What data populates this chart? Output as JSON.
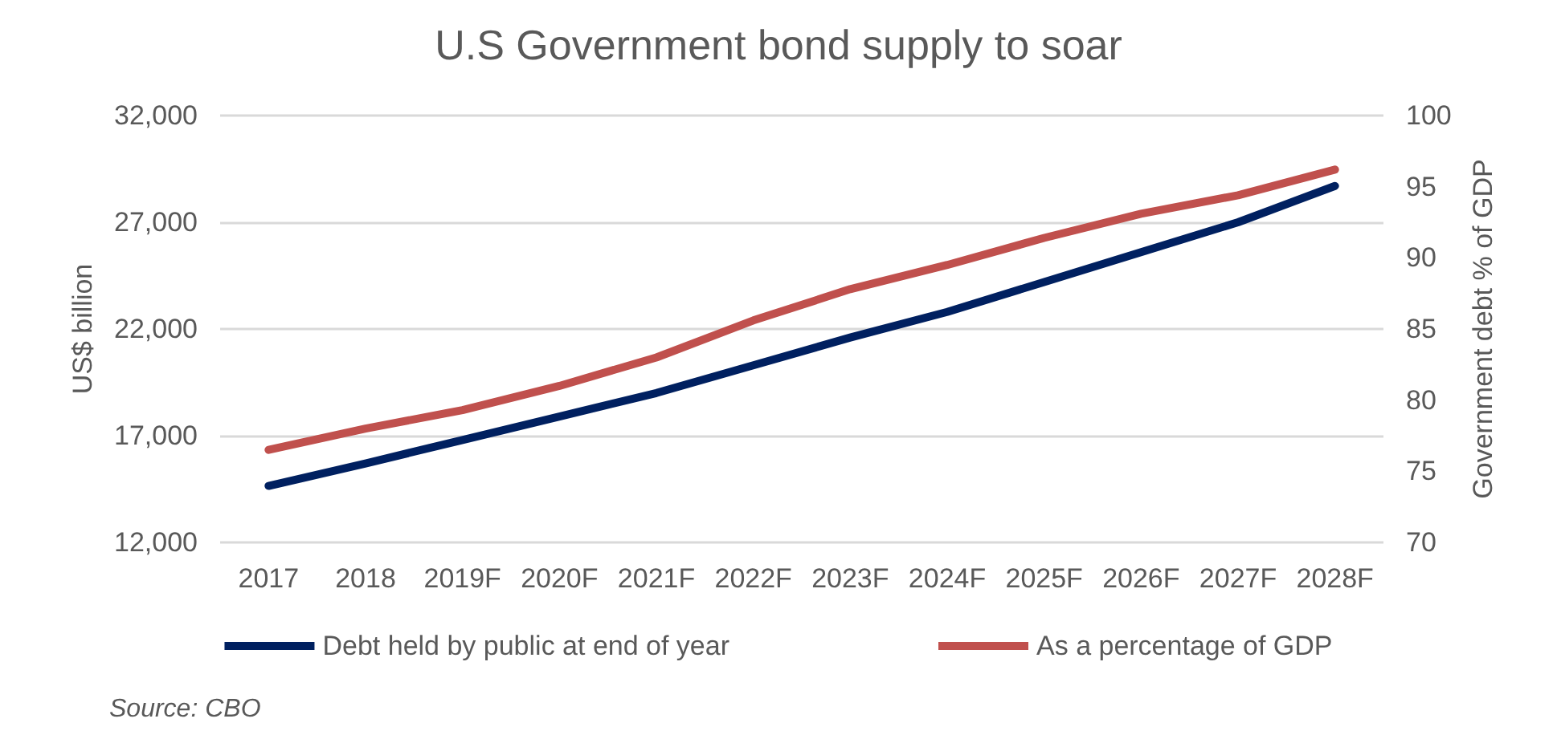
{
  "chart_data": {
    "type": "line",
    "title": "U.S Government bond supply to soar",
    "ylabel": "US$ billion",
    "y2label": "Government debt % of GDP",
    "annotations": [
      "Source: CBO"
    ],
    "categories": [
      "2017",
      "2018",
      "2019F",
      "2020F",
      "2021F",
      "2022F",
      "2023F",
      "2024F",
      "2025F",
      "2026F",
      "2027F",
      "2028F"
    ],
    "series": [
      {
        "name": "Debt held by public at end of year",
        "color": "#002060",
        "values": [
          14650,
          15700,
          16800,
          17900,
          19000,
          20300,
          21600,
          22800,
          24200,
          25600,
          27000,
          28700
        ]
      },
      {
        "name": "As a percentage of GDP",
        "color": "#c0504d",
        "axis": "y2",
        "values": [
          76.5,
          78,
          79.3,
          81,
          83,
          85.6,
          87.8,
          89.5,
          91.4,
          93.1,
          94.4,
          96.2
        ]
      }
    ],
    "ylim": [
      12000,
      32000
    ],
    "yticks": [
      {
        "value": 12000,
        "label": "12,000"
      },
      {
        "value": 17000,
        "label": "17,000"
      },
      {
        "value": 22000,
        "label": "22,000"
      },
      {
        "value": 27000,
        "label": "27,000"
      },
      {
        "value": 32000,
        "label": "32,000"
      }
    ],
    "y2lim": [
      70,
      100
    ],
    "y2ticks": [
      70,
      75,
      80,
      85,
      90,
      95,
      100
    ],
    "grid": "y",
    "legend": "bottom",
    "marker": "none",
    "line_style": "solid"
  }
}
